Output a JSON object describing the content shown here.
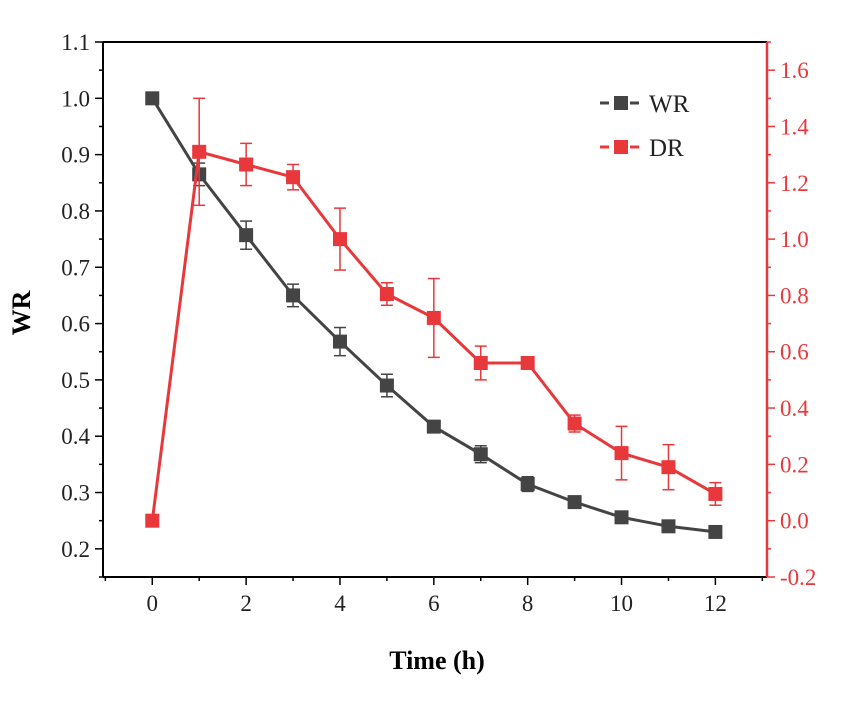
{
  "chart_data": {
    "type": "line",
    "title": "",
    "xlabel": "Time (h)",
    "ylabel": "WR",
    "y2label": "",
    "xlim": [
      -1.05,
      13.1
    ],
    "ylim": [
      0.15,
      1.1
    ],
    "y2lim": [
      -0.2,
      1.7
    ],
    "x_ticks": [
      0,
      2,
      4,
      6,
      8,
      10,
      12
    ],
    "x_tick_labels": [
      "0",
      "2",
      "4",
      "6",
      "8",
      "10",
      "12"
    ],
    "y_ticks": [
      0.2,
      0.3,
      0.4,
      0.5,
      0.6,
      0.7,
      0.8,
      0.9,
      1.0,
      1.1
    ],
    "y_tick_labels": [
      "0.2",
      "0.3",
      "0.4",
      "0.5",
      "0.6",
      "0.7",
      "0.8",
      "0.9",
      "1.0",
      "1.1"
    ],
    "y2_ticks": [
      -0.2,
      0.0,
      0.2,
      0.4,
      0.6,
      0.8,
      1.0,
      1.2,
      1.4,
      1.6
    ],
    "y2_tick_labels": [
      "-0.2",
      "0.0",
      "0.2",
      "0.4",
      "0.6",
      "0.8",
      "1.0",
      "1.2",
      "1.4",
      "1.6"
    ],
    "legend_position": "top-right",
    "series": [
      {
        "name": "WR",
        "axis": "left",
        "color": "#444444",
        "marker": "square",
        "x": [
          0,
          1,
          2,
          3,
          4,
          5,
          6,
          7,
          8,
          9,
          10,
          11,
          12
        ],
        "values": [
          1.0,
          0.865,
          0.757,
          0.65,
          0.568,
          0.49,
          0.417,
          0.368,
          0.315,
          0.283,
          0.256,
          0.24,
          0.23
        ],
        "errors": [
          0.0,
          0.02,
          0.025,
          0.02,
          0.025,
          0.02,
          0.0,
          0.015,
          0.013,
          0.0,
          0.0,
          0.0,
          0.0
        ]
      },
      {
        "name": "DR",
        "axis": "right",
        "color": "#e8383b",
        "marker": "square",
        "x": [
          0,
          1,
          2,
          3,
          4,
          5,
          6,
          7,
          8,
          9,
          10,
          11,
          12
        ],
        "values": [
          0.0,
          1.31,
          1.265,
          1.22,
          1.0,
          0.805,
          0.72,
          0.56,
          0.56,
          0.345,
          0.24,
          0.19,
          0.095
        ],
        "errors": [
          0.0,
          0.19,
          0.075,
          0.045,
          0.11,
          0.04,
          0.14,
          0.06,
          0.0,
          0.03,
          0.095,
          0.08,
          0.04
        ]
      }
    ]
  }
}
